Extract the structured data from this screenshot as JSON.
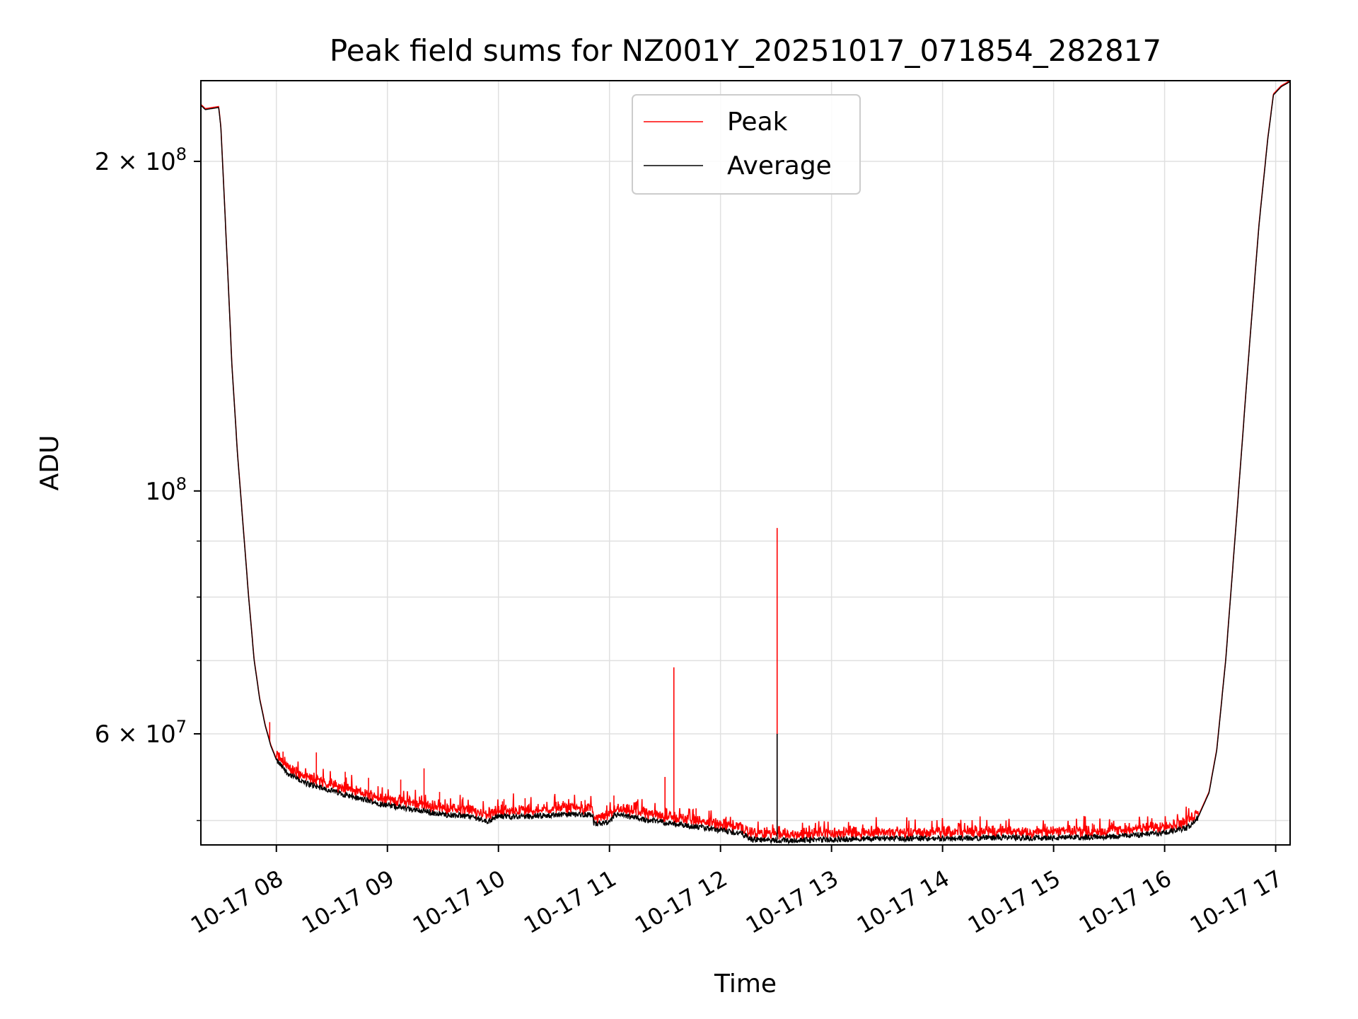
{
  "chart_data": {
    "type": "line",
    "title": "Peak field sums for NZ001Y_20251017_071854_282817",
    "xlabel": "Time",
    "ylabel": "ADU",
    "yscale": "log",
    "ylim": [
      47500000,
      237000000
    ],
    "xlim_hours": [
      7.32,
      17.13
    ],
    "grid": true,
    "legend_position": "top-center",
    "x_ticks": [
      {
        "value": 8,
        "label": "10-17 08"
      },
      {
        "value": 9,
        "label": "10-17 09"
      },
      {
        "value": 10,
        "label": "10-17 10"
      },
      {
        "value": 11,
        "label": "10-17 11"
      },
      {
        "value": 12,
        "label": "10-17 12"
      },
      {
        "value": 13,
        "label": "10-17 13"
      },
      {
        "value": 14,
        "label": "10-17 14"
      },
      {
        "value": 15,
        "label": "10-17 15"
      },
      {
        "value": 16,
        "label": "10-17 16"
      },
      {
        "value": 17,
        "label": "10-17 17"
      }
    ],
    "y_major_ticks": [
      {
        "value": 200000000,
        "mantissa": "2",
        "exponent": "8"
      },
      {
        "value": 100000000,
        "mantissa": "",
        "exponent": "8"
      },
      {
        "value": 60000000,
        "mantissa": "6",
        "exponent": "7"
      }
    ],
    "y_minor_ticks": [
      50000000,
      70000000,
      80000000,
      90000000
    ],
    "series": [
      {
        "name": "Average",
        "color": "#000000",
        "points": [
          [
            7.32,
            225000000
          ],
          [
            7.36,
            223000000
          ],
          [
            7.48,
            224000000
          ],
          [
            7.5,
            215000000
          ],
          [
            7.52,
            195000000
          ],
          [
            7.56,
            160000000
          ],
          [
            7.6,
            130000000
          ],
          [
            7.65,
            108000000
          ],
          [
            7.7,
            93000000
          ],
          [
            7.75,
            80000000
          ],
          [
            7.8,
            70000000
          ],
          [
            7.85,
            64500000
          ],
          [
            7.9,
            61000000
          ],
          [
            7.95,
            58500000
          ],
          [
            8.0,
            56800000
          ],
          [
            8.1,
            55300000
          ],
          [
            8.25,
            54200000
          ],
          [
            8.5,
            53300000
          ],
          [
            8.75,
            52400000
          ],
          [
            9.0,
            51700000
          ],
          [
            9.25,
            51200000
          ],
          [
            9.5,
            50700000
          ],
          [
            9.75,
            50500000
          ],
          [
            9.9,
            50000000
          ],
          [
            10.0,
            50500000
          ],
          [
            10.3,
            50500000
          ],
          [
            10.6,
            50700000
          ],
          [
            10.85,
            50700000
          ],
          [
            10.86,
            49700000
          ],
          [
            11.0,
            49800000
          ],
          [
            11.05,
            50700000
          ],
          [
            11.3,
            50200000
          ],
          [
            11.6,
            49700000
          ],
          [
            11.9,
            49200000
          ],
          [
            12.2,
            48700000
          ],
          [
            12.27,
            48100000
          ],
          [
            12.6,
            48000000
          ],
          [
            13.0,
            48100000
          ],
          [
            13.5,
            48200000
          ],
          [
            14.0,
            48200000
          ],
          [
            14.5,
            48300000
          ],
          [
            15.0,
            48250000
          ],
          [
            15.5,
            48400000
          ],
          [
            15.8,
            48600000
          ],
          [
            16.0,
            48800000
          ],
          [
            16.2,
            49300000
          ],
          [
            16.3,
            50300000
          ],
          [
            16.4,
            53000000
          ],
          [
            16.47,
            58000000
          ],
          [
            16.55,
            70000000
          ],
          [
            16.65,
            95000000
          ],
          [
            16.75,
            130000000
          ],
          [
            16.85,
            175000000
          ],
          [
            16.93,
            210000000
          ],
          [
            16.98,
            230000000
          ],
          [
            17.05,
            234000000
          ],
          [
            17.13,
            236500000
          ]
        ]
      },
      {
        "name": "Peak",
        "color": "#ff0000",
        "offset_pct": 1.2,
        "spikes": [
          [
            7.94,
            61500000
          ],
          [
            8.06,
            57800000
          ],
          [
            8.18,
            56000000
          ],
          [
            8.36,
            57700000
          ],
          [
            8.62,
            55400000
          ],
          [
            8.83,
            54700000
          ],
          [
            9.12,
            54500000
          ],
          [
            9.33,
            55800000
          ],
          [
            9.47,
            53100000
          ],
          [
            9.68,
            52500000
          ],
          [
            10.05,
            52300000
          ],
          [
            10.24,
            52400000
          ],
          [
            10.52,
            52000000
          ],
          [
            10.78,
            52200000
          ],
          [
            11.04,
            52700000
          ],
          [
            11.24,
            52000000
          ],
          [
            11.5,
            54800000
          ],
          [
            11.58,
            69000000
          ],
          [
            11.78,
            51300000
          ],
          [
            12.05,
            50400000
          ],
          [
            12.51,
            92500000
          ],
          [
            12.75,
            49200000
          ],
          [
            13.38,
            49100000
          ],
          [
            14.04,
            49300000
          ],
          [
            14.72,
            49300000
          ],
          [
            15.35,
            49700000
          ],
          [
            15.96,
            49800000
          ]
        ]
      }
    ],
    "legend": [
      {
        "label": "Peak",
        "color": "#ff0000"
      },
      {
        "label": "Average",
        "color": "#000000"
      }
    ]
  }
}
